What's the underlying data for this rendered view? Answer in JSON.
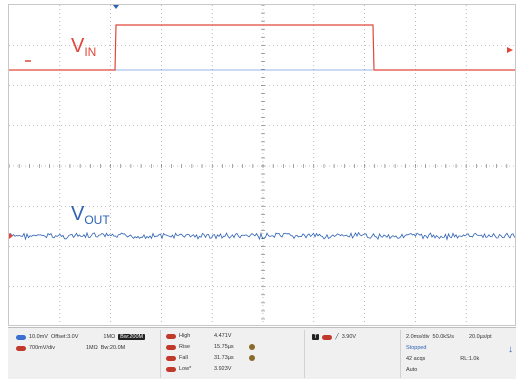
{
  "labels": {
    "vin_main": "V",
    "vin_sub": "IN",
    "vout_main": "V",
    "vout_sub": "OUT"
  },
  "colors": {
    "vin": "#e0473a",
    "vout": "#2f62b5",
    "grid": "#8c8c8c",
    "center_axis": "#6e6e6e"
  },
  "channels": [
    {
      "badge_color": "blue",
      "scale": "10.0mV",
      "offset": "Offset:3.0V",
      "coupling": "1MΩ",
      "bw": "Bw:200M"
    },
    {
      "badge_color": "red",
      "scale": "700mV/div",
      "offset": "",
      "coupling": "1MΩ",
      "bw": "Bw:20.0M"
    }
  ],
  "measurements": [
    {
      "label": "High",
      "value": "4.471V"
    },
    {
      "label": "Rise",
      "value": "15.75µs"
    },
    {
      "label": "Fall",
      "value": "31.73µs"
    },
    {
      "label": "Low*",
      "value": "3.923V"
    }
  ],
  "trigger": {
    "level": "3.90V"
  },
  "timebase": {
    "div": "2.0ms/div",
    "rate": "50.0kS/s",
    "pts": "20.0µs/pt",
    "state": "Stopped",
    "acqs": "42 acqs",
    "rl": "RL:1.0k",
    "mode": "Auto"
  }
}
